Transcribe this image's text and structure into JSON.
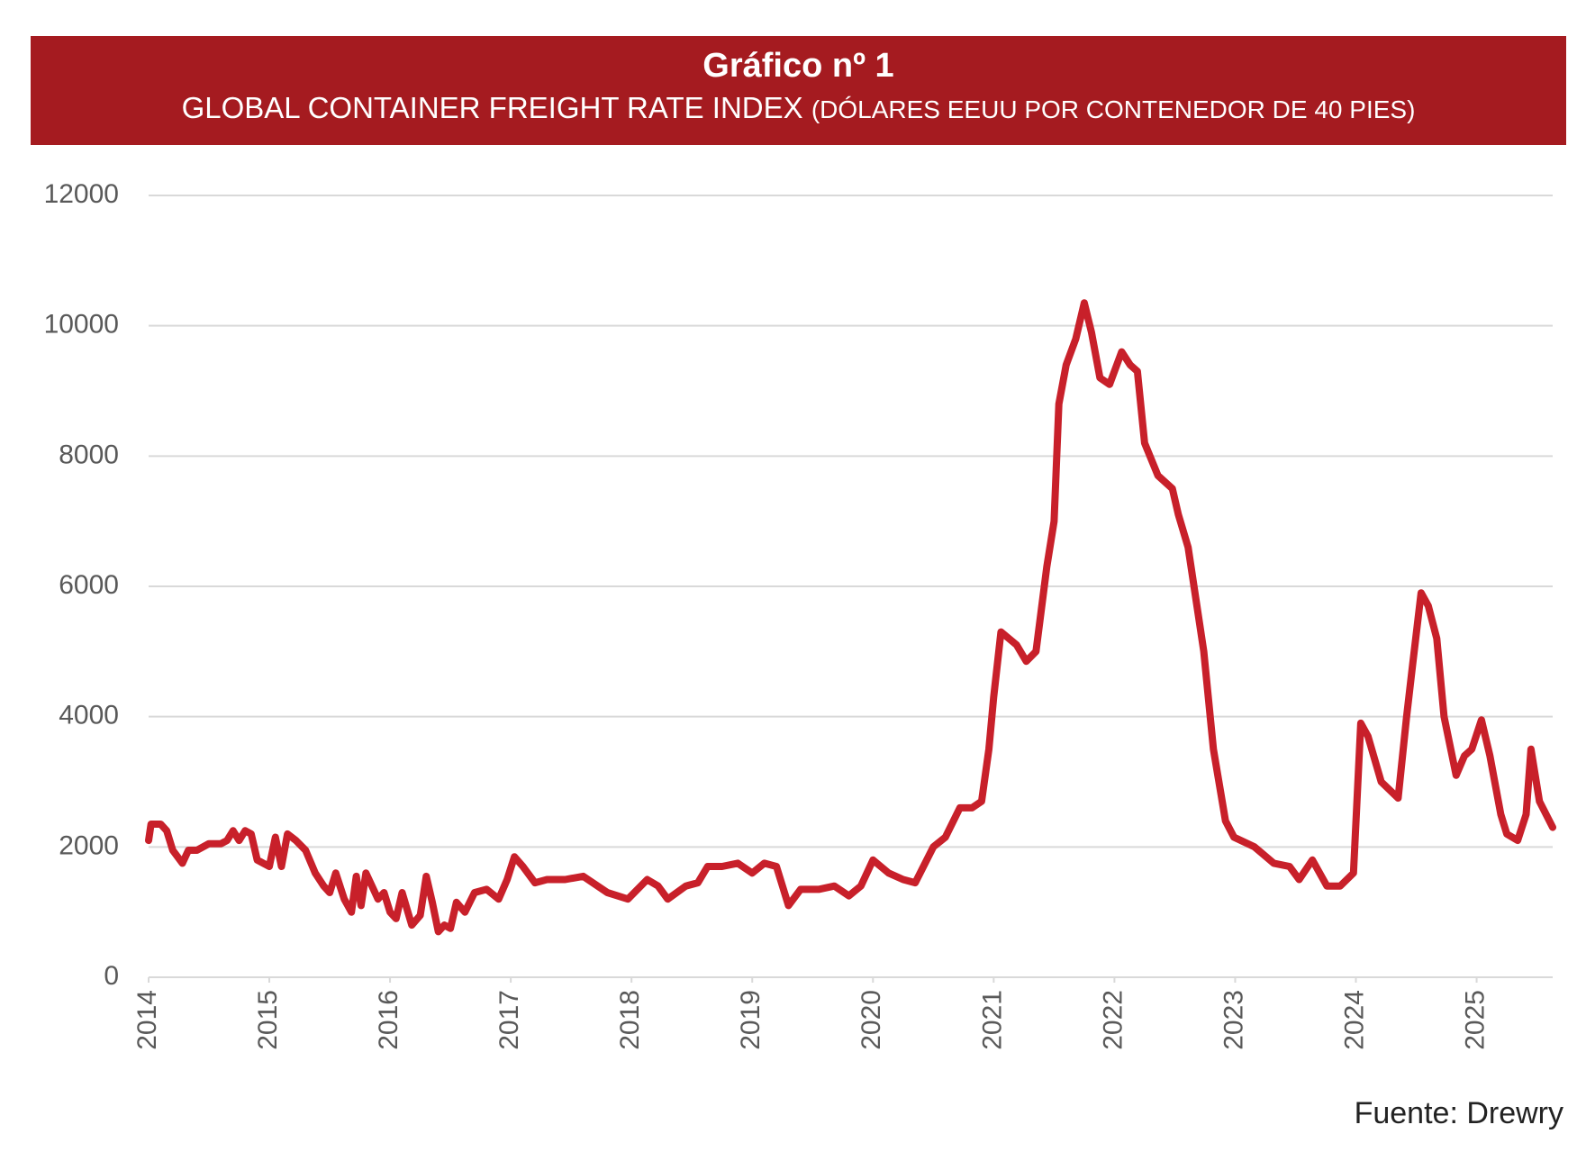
{
  "chart_data": {
    "type": "line",
    "title": "Gráfico nº 1",
    "subtitle": "GLOBAL CONTAINER FREIGHT RATE INDEX",
    "unit_note": "(DÓLARES EEUU POR CONTENEDOR DE 40 PIES)",
    "source": "Fuente: Drewry",
    "color": "#c8202a",
    "grid": true,
    "xlim": [
      2014,
      2025.63
    ],
    "xticks": [
      2014,
      2015,
      2016,
      2017,
      2018,
      2019,
      2020,
      2021,
      2022,
      2023,
      2024,
      2025
    ],
    "ylim": [
      0,
      12000
    ],
    "yticks": [
      0,
      2000,
      4000,
      6000,
      8000,
      10000,
      12000
    ],
    "x": [
      2014.0,
      2014.02,
      2014.1,
      2014.15,
      2014.2,
      2014.28,
      2014.33,
      2014.4,
      2014.5,
      2014.6,
      2014.65,
      2014.7,
      2014.75,
      2014.8,
      2014.85,
      2014.9,
      2015.0,
      2015.05,
      2015.1,
      2015.15,
      2015.22,
      2015.3,
      2015.38,
      2015.45,
      2015.5,
      2015.55,
      2015.62,
      2015.68,
      2015.72,
      2015.76,
      2015.8,
      2015.85,
      2015.9,
      2015.95,
      2016.0,
      2016.05,
      2016.1,
      2016.18,
      2016.25,
      2016.3,
      2016.35,
      2016.4,
      2016.45,
      2016.5,
      2016.55,
      2016.62,
      2016.7,
      2016.8,
      2016.9,
      2016.97,
      2017.03,
      2017.1,
      2017.2,
      2017.3,
      2017.45,
      2017.6,
      2017.8,
      2017.97,
      2018.13,
      2018.22,
      2018.3,
      2018.45,
      2018.55,
      2018.63,
      2018.75,
      2018.88,
      2019.0,
      2019.1,
      2019.2,
      2019.3,
      2019.4,
      2019.55,
      2019.68,
      2019.8,
      2019.9,
      2020.0,
      2020.13,
      2020.25,
      2020.35,
      2020.5,
      2020.6,
      2020.72,
      2020.82,
      2020.9,
      2020.96,
      2021.0,
      2021.06,
      2021.19,
      2021.27,
      2021.35,
      2021.44,
      2021.5,
      2021.54,
      2021.6,
      2021.68,
      2021.75,
      2021.81,
      2021.88,
      2021.96,
      2022.06,
      2022.13,
      2022.19,
      2022.25,
      2022.36,
      2022.48,
      2022.53,
      2022.61,
      2022.74,
      2022.82,
      2022.92,
      2022.99,
      2023.16,
      2023.32,
      2023.45,
      2023.53,
      2023.64,
      2023.76,
      2023.87,
      2023.98,
      2024.04,
      2024.1,
      2024.21,
      2024.35,
      2024.42,
      2024.47,
      2024.54,
      2024.6,
      2024.67,
      2024.73,
      2024.83,
      2024.9,
      2024.96,
      2025.04,
      2025.11,
      2025.2,
      2025.25,
      2025.34,
      2025.41,
      2025.45,
      2025.52,
      2025.63
    ],
    "values": [
      2100,
      2350,
      2350,
      2250,
      1950,
      1750,
      1950,
      1950,
      2050,
      2050,
      2100,
      2250,
      2100,
      2250,
      2200,
      1800,
      1700,
      2150,
      1700,
      2200,
      2100,
      1950,
      1600,
      1400,
      1300,
      1600,
      1200,
      1000,
      1550,
      1100,
      1600,
      1400,
      1200,
      1300,
      1000,
      900,
      1300,
      800,
      950,
      1550,
      1150,
      700,
      800,
      750,
      1150,
      1000,
      1300,
      1350,
      1200,
      1500,
      1850,
      1700,
      1450,
      1500,
      1500,
      1550,
      1300,
      1200,
      1500,
      1400,
      1200,
      1400,
      1450,
      1700,
      1700,
      1750,
      1600,
      1750,
      1700,
      1100,
      1350,
      1350,
      1400,
      1250,
      1400,
      1800,
      1600,
      1500,
      1450,
      2000,
      2150,
      2600,
      2600,
      2700,
      3500,
      4300,
      5300,
      5100,
      4850,
      5000,
      6300,
      7000,
      8800,
      9400,
      9800,
      10350,
      9900,
      9200,
      9100,
      9600,
      9400,
      9300,
      8200,
      7700,
      7500,
      7100,
      6600,
      5000,
      3500,
      2400,
      2150,
      2000,
      1750,
      1700,
      1500,
      1800,
      1400,
      1400,
      1600,
      3900,
      3700,
      3000,
      2750,
      4000,
      4800,
      5900,
      5700,
      5200,
      4000,
      3100,
      3400,
      3500,
      3950,
      3400,
      2500,
      2200,
      2100,
      2500,
      3500,
      2700,
      2300
    ]
  }
}
